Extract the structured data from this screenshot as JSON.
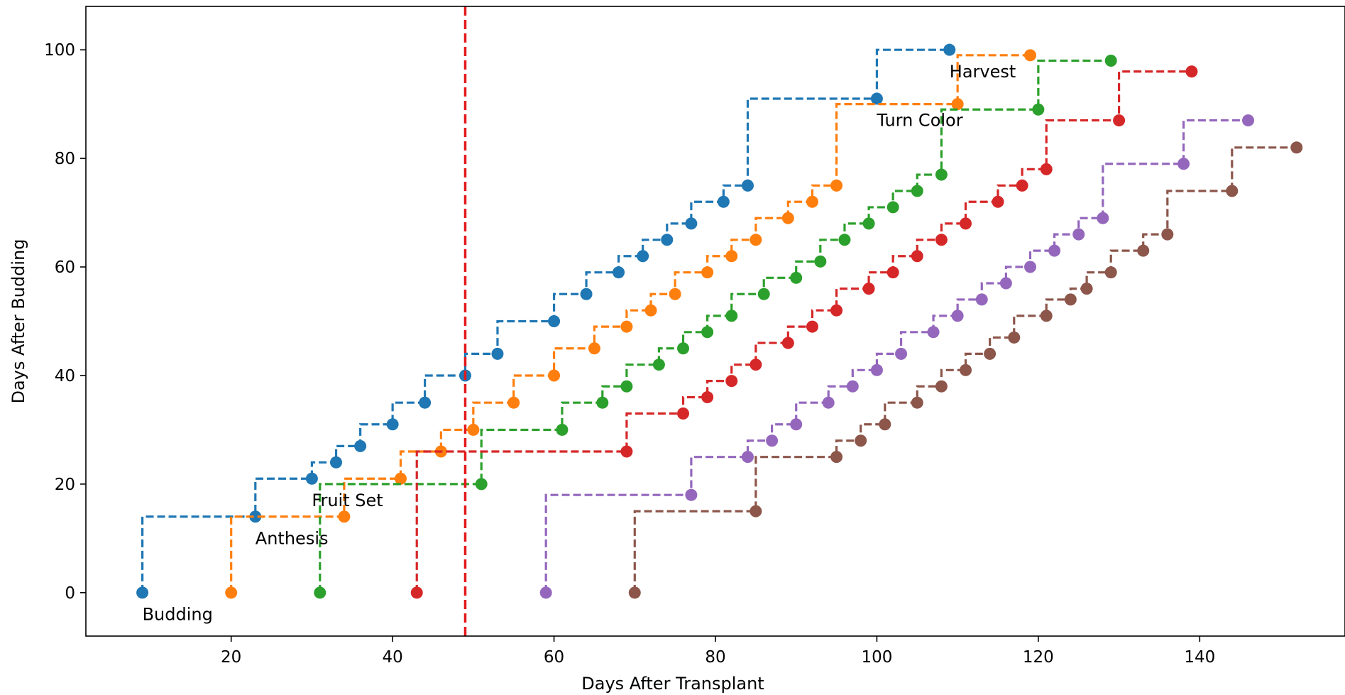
{
  "chart_data": {
    "type": "line",
    "title": "",
    "xlabel": "Days After Transplant",
    "ylabel": "Days After Budding",
    "xlim": [
      2,
      158
    ],
    "ylim": [
      -8,
      108
    ],
    "xticks": [
      20,
      40,
      60,
      80,
      100,
      120,
      140
    ],
    "yticks": [
      0,
      20,
      40,
      60,
      80,
      100
    ],
    "grid": false,
    "legend": "none",
    "step": "post",
    "line_style": "dashed",
    "vline": {
      "x": 49,
      "color": "#e31a1c",
      "style": "dashed"
    },
    "series": [
      {
        "color": "#1f77b4",
        "x": [
          9,
          23,
          30,
          33,
          36,
          40,
          44,
          49,
          53,
          60,
          64,
          68,
          71,
          74,
          77,
          81,
          84,
          100,
          109
        ],
        "y": [
          0,
          14,
          21,
          24,
          27,
          31,
          35,
          40,
          44,
          50,
          55,
          59,
          62,
          65,
          68,
          72,
          75,
          91,
          100
        ]
      },
      {
        "color": "#ff7f0e",
        "x": [
          20,
          34,
          41,
          46,
          50,
          55,
          60,
          65,
          69,
          72,
          75,
          79,
          82,
          85,
          89,
          92,
          95,
          110,
          119
        ],
        "y": [
          0,
          14,
          21,
          26,
          30,
          35,
          40,
          45,
          49,
          52,
          55,
          59,
          62,
          65,
          69,
          72,
          75,
          90,
          99
        ]
      },
      {
        "color": "#2ca02c",
        "x": [
          31,
          51,
          61,
          66,
          69,
          73,
          76,
          79,
          82,
          86,
          90,
          93,
          96,
          99,
          102,
          105,
          108,
          120,
          129
        ],
        "y": [
          0,
          20,
          30,
          35,
          38,
          42,
          45,
          48,
          51,
          55,
          58,
          61,
          65,
          68,
          71,
          74,
          77,
          89,
          98
        ]
      },
      {
        "color": "#d62728",
        "x": [
          43,
          69,
          76,
          79,
          82,
          85,
          89,
          92,
          95,
          99,
          102,
          105,
          108,
          111,
          115,
          118,
          121,
          130,
          139
        ],
        "y": [
          0,
          26,
          33,
          36,
          39,
          42,
          46,
          49,
          52,
          56,
          59,
          62,
          65,
          68,
          72,
          75,
          78,
          87,
          96
        ]
      },
      {
        "color": "#9467bd",
        "x": [
          59,
          77,
          84,
          87,
          90,
          94,
          97,
          100,
          103,
          107,
          110,
          113,
          116,
          119,
          122,
          125,
          128,
          138,
          146
        ],
        "y": [
          0,
          18,
          25,
          28,
          31,
          35,
          38,
          41,
          44,
          48,
          51,
          54,
          57,
          60,
          63,
          66,
          69,
          79,
          87
        ]
      },
      {
        "color": "#8c564b",
        "x": [
          70,
          85,
          95,
          98,
          101,
          105,
          108,
          111,
          114,
          117,
          121,
          124,
          126,
          129,
          133,
          136,
          144,
          152
        ],
        "y": [
          0,
          15,
          25,
          28,
          31,
          35,
          38,
          41,
          44,
          47,
          51,
          54,
          56,
          59,
          63,
          66,
          74,
          82
        ]
      }
    ],
    "annotations": [
      {
        "text": "Budding",
        "x": 9,
        "y": -4
      },
      {
        "text": "Anthesis",
        "x": 23,
        "y": 10
      },
      {
        "text": "Fruit Set",
        "x": 30,
        "y": 17
      },
      {
        "text": "Turn Color",
        "x": 100,
        "y": 87
      },
      {
        "text": "Harvest",
        "x": 109,
        "y": 96
      }
    ]
  }
}
